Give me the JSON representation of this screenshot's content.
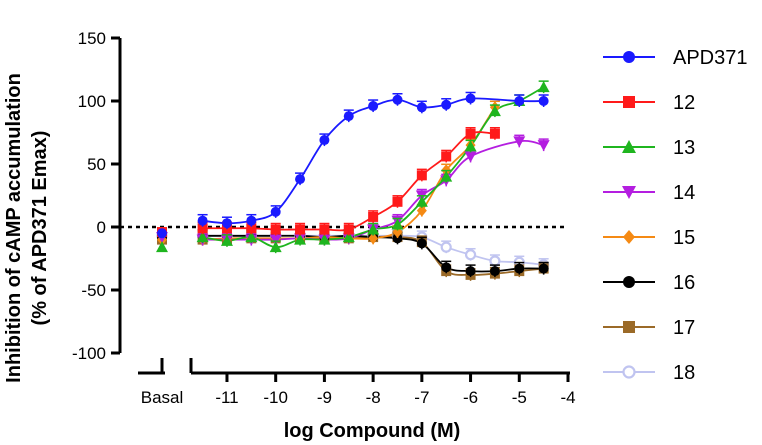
{
  "chart_data": {
    "type": "scatter",
    "xlabel": "log Compound (M)",
    "ylabel_line1": "Inhibition of cAMP accumulation",
    "ylabel_line2": "(% of APD371 Emax)",
    "xlim": [
      -11.8,
      -4
    ],
    "ylim": [
      -100,
      150
    ],
    "x_ticks": [
      -11,
      -10,
      -9,
      -8,
      -7,
      -6,
      -5,
      -4
    ],
    "y_ticks": [
      -100,
      -50,
      0,
      50,
      100,
      150
    ],
    "basal_label": "Basal",
    "reference_line_y": 0,
    "grid": false,
    "legend_position": "right",
    "x": [
      -11.5,
      -11,
      -10.5,
      -10,
      -9.5,
      -9,
      -8.5,
      -8,
      -7.5,
      -7,
      -6.5,
      -6,
      -5.5,
      -5,
      -4.5
    ],
    "series": [
      {
        "name": "APD371",
        "color": "#1a1aff",
        "marker": "circle-filled",
        "basal": -5,
        "values": [
          5,
          3,
          5,
          12,
          38,
          69,
          88,
          96,
          101,
          95,
          97,
          102,
          null,
          100,
          100
        ]
      },
      {
        "name": "12",
        "color": "#ff1a1a",
        "marker": "square",
        "basal": -4,
        "values": [
          -1,
          -1,
          -1,
          -2,
          -2,
          -2,
          -2,
          8,
          20,
          41,
          56,
          74,
          74,
          null,
          null
        ]
      },
      {
        "name": "13",
        "color": "#1fb51f",
        "marker": "triangle-up",
        "basal": -16,
        "values": [
          -8,
          -11,
          -8,
          -16,
          -10,
          -10,
          -8,
          -2,
          2,
          20,
          40,
          64,
          92,
          100,
          111
        ]
      },
      {
        "name": "14",
        "color": "#b41ee0",
        "marker": "triangle-down",
        "basal": -8,
        "values": [
          -10,
          -10,
          -10,
          -10,
          -9,
          -10,
          -9,
          -2,
          5,
          25,
          37,
          56,
          null,
          68,
          65
        ]
      },
      {
        "name": "15",
        "color": "#f58a14",
        "marker": "diamond",
        "basal": -10,
        "values": [
          -10,
          -9,
          -9,
          -9,
          -9,
          -8,
          -9,
          -9,
          -4,
          13,
          45,
          65,
          95,
          null,
          null
        ]
      },
      {
        "name": "16",
        "color": "#000000",
        "marker": "circle-filled",
        "basal": -8,
        "values": [
          -7,
          -7,
          -7,
          -7,
          -7,
          -8,
          -7,
          -8,
          -9,
          -13,
          -32,
          -35,
          -35,
          -33,
          -33
        ]
      },
      {
        "name": "17",
        "color": "#9b6a28",
        "marker": "square",
        "basal": -10,
        "values": [
          -10,
          -10,
          -9,
          -9,
          -9,
          -9,
          -9,
          -8,
          -8,
          -12,
          -35,
          -38,
          -37,
          -35,
          -33
        ]
      },
      {
        "name": "18",
        "color": "#c0c4f0",
        "marker": "circle-open",
        "basal": -7,
        "values": [
          -7,
          -7,
          -7,
          -7,
          -7,
          -7,
          -7,
          -7,
          -7,
          -8,
          -16,
          -22,
          -27,
          -28,
          -30
        ]
      }
    ]
  }
}
